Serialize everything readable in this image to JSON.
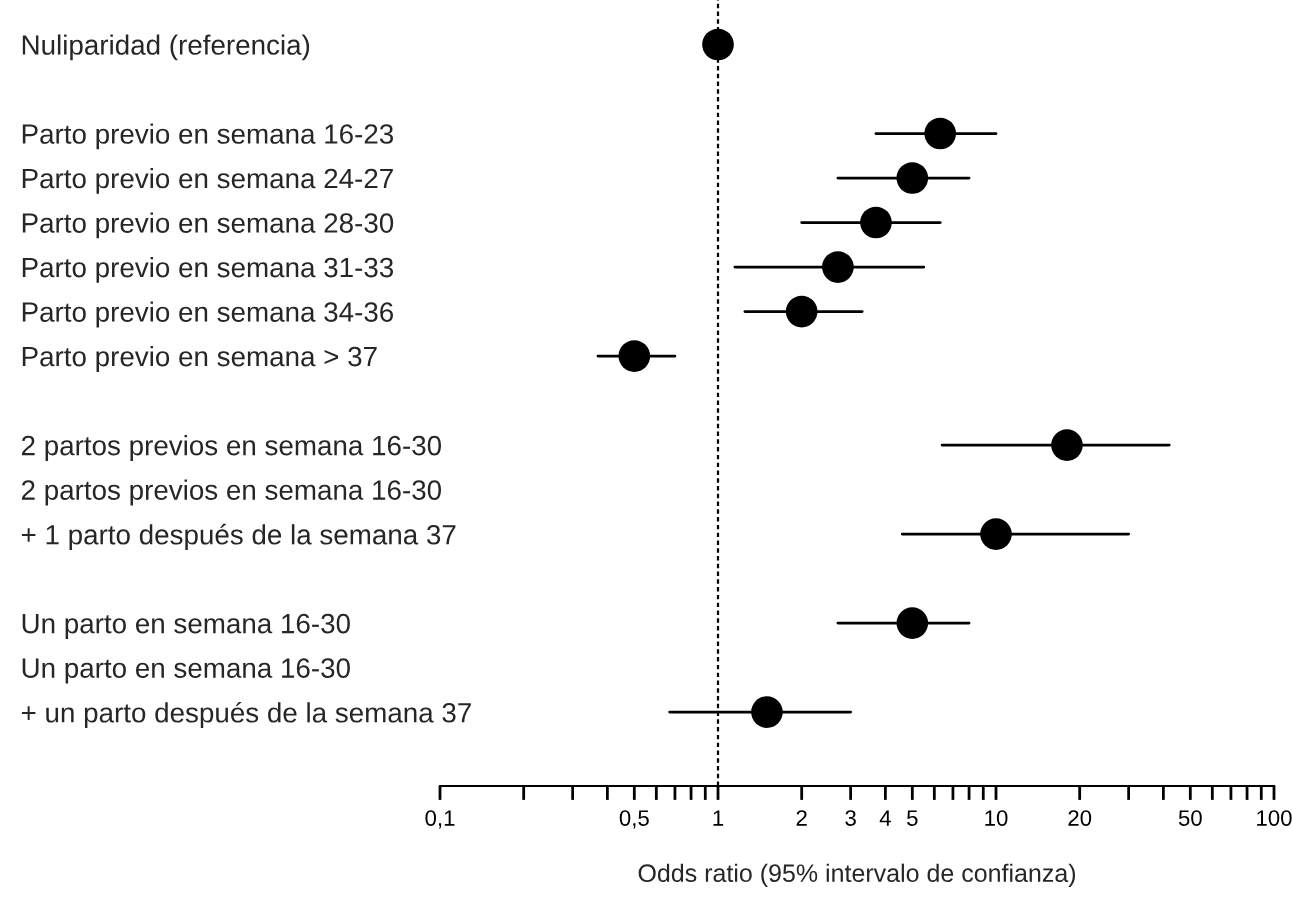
{
  "chart_data": {
    "type": "scatter",
    "orientation": "horizontal",
    "xlabel": "Odds ratio (95% intervalo de confianza)",
    "categories": [
      "Nuliparidad (referencia)",
      null,
      "Parto previo en semana 16-23",
      "Parto previo en semana 24-27",
      "Parto previo en semana 28-30",
      "Parto previo en semana 31-33",
      "Parto previo en semana 34-36",
      "Parto previo en semana > 37",
      null,
      "2 partos previos en semana 16-30",
      "2 partos previos en semana 16-30",
      "+ 1 parto después de la semana 37",
      null,
      "Un parto en semana 16-30",
      "Un parto en semana 16-30",
      "+ un parto después de la semana 37"
    ],
    "series": [
      {
        "color": "#000000",
        "values": [
          1,
          null,
          6.3,
          5,
          3.7,
          2.7,
          2,
          0.5,
          null,
          18,
          null,
          10,
          null,
          5,
          null,
          1.5
        ],
        "errors": [
          null,
          null,
          [
            3.7,
            10
          ],
          [
            2.7,
            8
          ],
          [
            2,
            6.3
          ],
          [
            1.15,
            5.5
          ],
          [
            1.25,
            3.3
          ],
          [
            0.37,
            0.7
          ],
          null,
          [
            6.4,
            42
          ],
          null,
          [
            4.6,
            30
          ],
          null,
          [
            2.7,
            8
          ],
          null,
          [
            0.67,
            3
          ]
        ]
      }
    ],
    "log": "x",
    "xlim": [
      0.1,
      100
    ],
    "xticks": [
      {
        "value": 0.1,
        "label": "0,1"
      },
      {
        "value": 0.2,
        "label": null
      },
      {
        "value": 0.3,
        "label": null
      },
      {
        "value": 0.4,
        "label": null
      },
      {
        "value": 0.5,
        "label": "0,5"
      },
      {
        "value": 0.6,
        "label": null
      },
      {
        "value": 0.7,
        "label": null
      },
      {
        "value": 0.8,
        "label": null
      },
      {
        "value": 0.9,
        "label": null
      },
      1,
      2,
      3,
      4,
      5,
      {
        "value": 6,
        "label": null
      },
      {
        "value": 7,
        "label": null
      },
      {
        "value": 8,
        "label": null
      },
      {
        "value": 9,
        "label": null
      },
      10,
      20,
      {
        "value": 30,
        "label": null
      },
      {
        "value": 40,
        "label": null
      },
      50,
      {
        "value": 60,
        "label": null
      },
      {
        "value": 70,
        "label": null
      },
      {
        "value": 80,
        "label": null
      },
      {
        "value": 90,
        "label": null
      },
      100
    ],
    "ref_lines": [
      {
        "axis": "x",
        "value": 1,
        "line_style": "dashed",
        "color": "#000000"
      }
    ],
    "marker": "circle",
    "grid": false,
    "legend": false
  }
}
